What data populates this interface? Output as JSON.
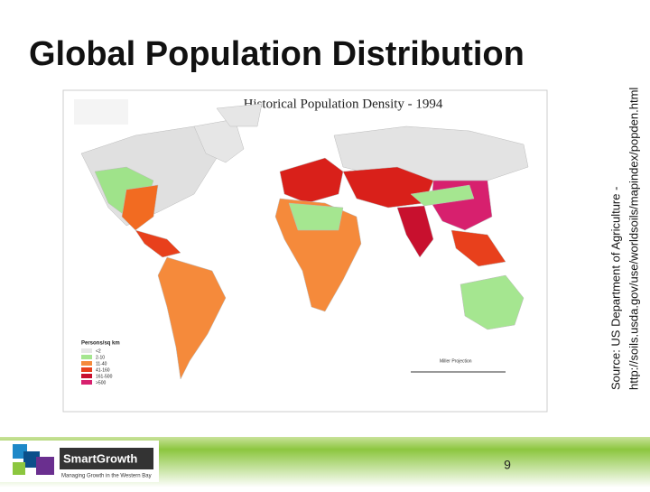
{
  "slide": {
    "title": "Global Population Distribution",
    "source": {
      "line1": "Source: US Department of Agriculture -",
      "line2": "http://soils.usda.gov/use/worldsoils/mapindex/popden.html"
    },
    "map": {
      "title": "Historical Population Density - 1994",
      "legend_title": "Persons/sq km",
      "legend": [
        "<2",
        "2-10",
        "11-40",
        "41-160",
        "161-500",
        ">500"
      ],
      "projection": "Miller Projection"
    },
    "page_number": "9",
    "logo": {
      "name": "SmartGrowth",
      "tagline": "Managing Growth in the Western Bay"
    }
  }
}
